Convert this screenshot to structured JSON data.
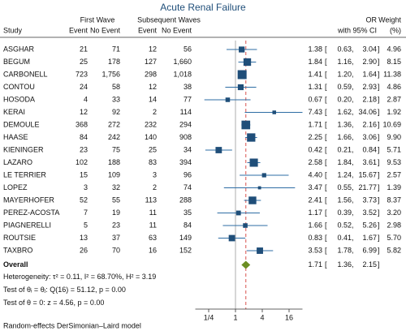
{
  "chart_data": {
    "type": "forest",
    "title": "Acute Renal Failure",
    "column_groups": [
      "First Wave",
      "Subsequent Waves"
    ],
    "columns": [
      "Study",
      "Event",
      "No Event",
      "Event",
      "No Event"
    ],
    "effect_header": [
      "OR",
      "with 95% CI"
    ],
    "weight_header": [
      "Weight",
      "(%)"
    ],
    "studies": [
      {
        "name": "ASGHAR",
        "counts": [
          21,
          71,
          12,
          56
        ],
        "or": 1.38,
        "ci": [
          0.63,
          3.04
        ],
        "weight": 4.96
      },
      {
        "name": "BEGUM",
        "counts": [
          25,
          178,
          127,
          {
            "value": 1660,
            "label": "1,660"
          }
        ],
        "or": 1.84,
        "ci": [
          1.16,
          {
            "value": 2.9,
            "label": "2.90"
          }
        ],
        "weight": 8.15
      },
      {
        "name": "CARBONELL",
        "counts": [
          723,
          {
            "value": 1756,
            "label": "1,756"
          },
          298,
          {
            "value": 1018,
            "label": "1,018"
          }
        ],
        "or": 1.41,
        "ci": [
          {
            "value": 1.2,
            "label": "1.20"
          },
          1.64
        ],
        "weight": 11.38
      },
      {
        "name": "CONTOU",
        "counts": [
          24,
          58,
          12,
          38
        ],
        "or": 1.31,
        "ci": [
          0.59,
          2.93
        ],
        "weight": 4.86
      },
      {
        "name": "HOSODA",
        "counts": [
          4,
          33,
          14,
          77
        ],
        "or": 0.67,
        "ci": [
          {
            "value": 0.2,
            "label": "0.20"
          },
          2.18
        ],
        "weight": 2.87
      },
      {
        "name": "KERAI",
        "counts": [
          12,
          92,
          2,
          114
        ],
        "or": 7.43,
        "ci": [
          1.62,
          34.06
        ],
        "weight": 1.92
      },
      {
        "name": "DEMOULE",
        "counts": [
          368,
          272,
          232,
          294
        ],
        "or": 1.71,
        "ci": [
          1.36,
          2.16
        ],
        "weight": 10.69
      },
      {
        "name": "HAASE",
        "counts": [
          84,
          242,
          140,
          908
        ],
        "or": 2.25,
        "ci": [
          1.66,
          3.06
        ],
        "weight": {
          "value": 9.9,
          "label": "9.90"
        }
      },
      {
        "name": "KIENINGER",
        "counts": [
          23,
          75,
          25,
          34
        ],
        "or": 0.42,
        "ci": [
          0.21,
          0.84
        ],
        "weight": 5.71
      },
      {
        "name": "LAZARO",
        "counts": [
          102,
          188,
          83,
          394
        ],
        "or": 2.58,
        "ci": [
          1.84,
          3.61
        ],
        "weight": 9.53
      },
      {
        "name": "LE TERRIER",
        "counts": [
          15,
          109,
          3,
          96
        ],
        "or": 4.4,
        "or_label": "4.40",
        "ci": [
          1.24,
          15.67
        ],
        "weight": 2.57
      },
      {
        "name": "LOPEZ",
        "counts": [
          3,
          32,
          2,
          74
        ],
        "or": 3.47,
        "ci": [
          0.55,
          21.77
        ],
        "weight": 1.39
      },
      {
        "name": "MAYERHOFER",
        "counts": [
          52,
          55,
          113,
          288
        ],
        "or": 2.41,
        "ci": [
          1.56,
          3.73
        ],
        "weight": 8.37
      },
      {
        "name": "PEREZ-ACOSTA",
        "counts": [
          7,
          19,
          11,
          35
        ],
        "or": 1.17,
        "ci": [
          0.39,
          3.52
        ],
        "weight": {
          "value": 3.2,
          "label": "3.20"
        }
      },
      {
        "name": "PIAGNERELLI",
        "counts": [
          5,
          23,
          11,
          84
        ],
        "or": 1.66,
        "ci": [
          0.52,
          5.26
        ],
        "weight": 2.98
      },
      {
        "name": "ROUTSIE",
        "counts": [
          13,
          37,
          63,
          149
        ],
        "or": 0.83,
        "ci": [
          0.41,
          1.67
        ],
        "weight": {
          "value": 5.7,
          "label": "5.70"
        }
      },
      {
        "name": "TAXBRO",
        "counts": [
          26,
          70,
          16,
          152
        ],
        "or": 3.53,
        "ci": [
          1.78,
          6.99
        ],
        "weight": 5.82
      }
    ],
    "overall": {
      "name": "Overall",
      "or": 1.71,
      "ci": [
        1.36,
        2.15
      ]
    },
    "notes": [
      "Heterogeneity: τ² = 0.11, I² = 68.70%, H² = 3.19",
      "Test of θᵢ = θⱼ: Q(16) = 51.12, p = 0.00",
      "Test of θ = 0: z = 4.56, p = 0.00"
    ],
    "footer": "Random-effects DerSimonian–Laird model",
    "log_scale": true,
    "xlim": [
      0.125,
      32
    ],
    "xticks": [
      {
        "value": 0.25,
        "label": "1/4"
      },
      1,
      4,
      16
    ],
    "colors": {
      "marker": "#1f4e79",
      "ci": "#2e6da4",
      "diamond": "#6b8e23",
      "overall_line": "#d9534f",
      "null_line": "#999999"
    }
  }
}
